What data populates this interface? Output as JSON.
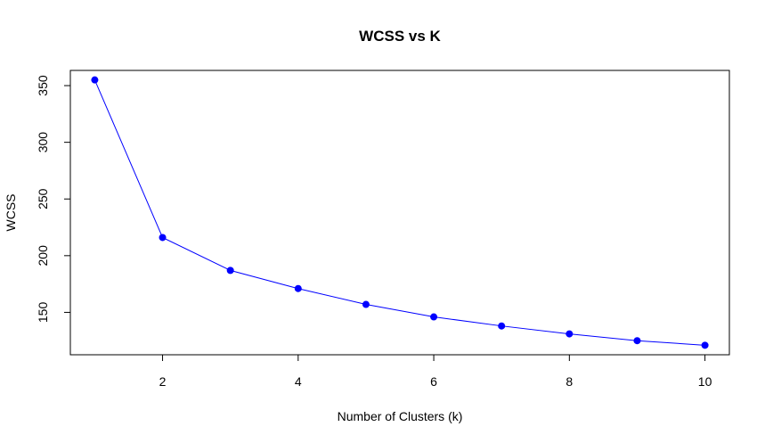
{
  "chart_data": {
    "type": "line",
    "title": "WCSS vs K",
    "xlabel": "Number of Clusters (k)",
    "ylabel": "WCSS",
    "x": [
      1,
      2,
      3,
      4,
      5,
      6,
      7,
      8,
      9,
      10
    ],
    "series": [
      {
        "values": [
          355,
          216,
          187,
          171,
          157,
          146,
          138,
          131,
          125,
          121
        ]
      }
    ],
    "xlim": [
      0.64,
      10.36
    ],
    "ylim": [
      112.6,
      363.4
    ],
    "xticks": [
      2,
      4,
      6,
      8,
      10
    ],
    "yticks": [
      150,
      200,
      250,
      300,
      350
    ],
    "line_color": "#0000ff",
    "point_color": "#0000ff",
    "markers": "filled-circle",
    "grid": false,
    "legend": "none"
  }
}
